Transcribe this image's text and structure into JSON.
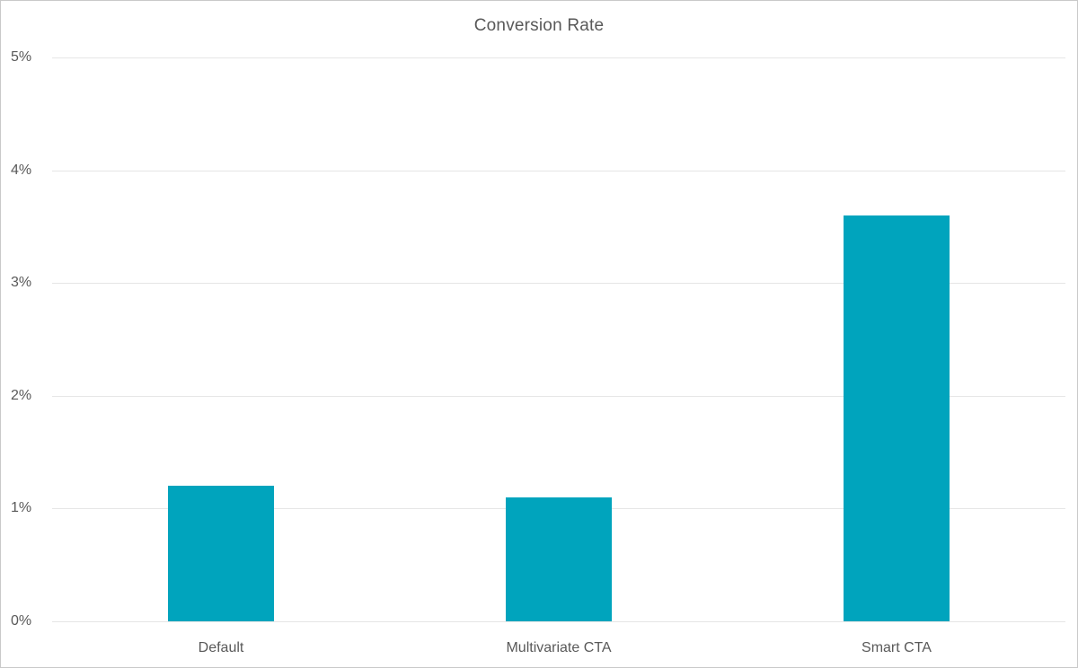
{
  "chart_data": {
    "type": "bar",
    "title": "Conversion Rate",
    "categories": [
      "Default",
      "Multivariate CTA",
      "Smart CTA"
    ],
    "values": [
      1.2,
      1.1,
      3.6
    ],
    "unit": "%",
    "y_ticks": [
      "0%",
      "1%",
      "2%",
      "3%",
      "4%",
      "5%"
    ],
    "ylim": [
      0,
      5
    ],
    "grid": true,
    "legend": "none",
    "bar_color": "#00a4bd",
    "title_color": "#595959",
    "tick_color": "#595959",
    "gridline_color": "#e6e6e6",
    "frame_border_color": "#c9c9c9"
  },
  "layout_note": "single bar chart, y axis percent 0-5"
}
